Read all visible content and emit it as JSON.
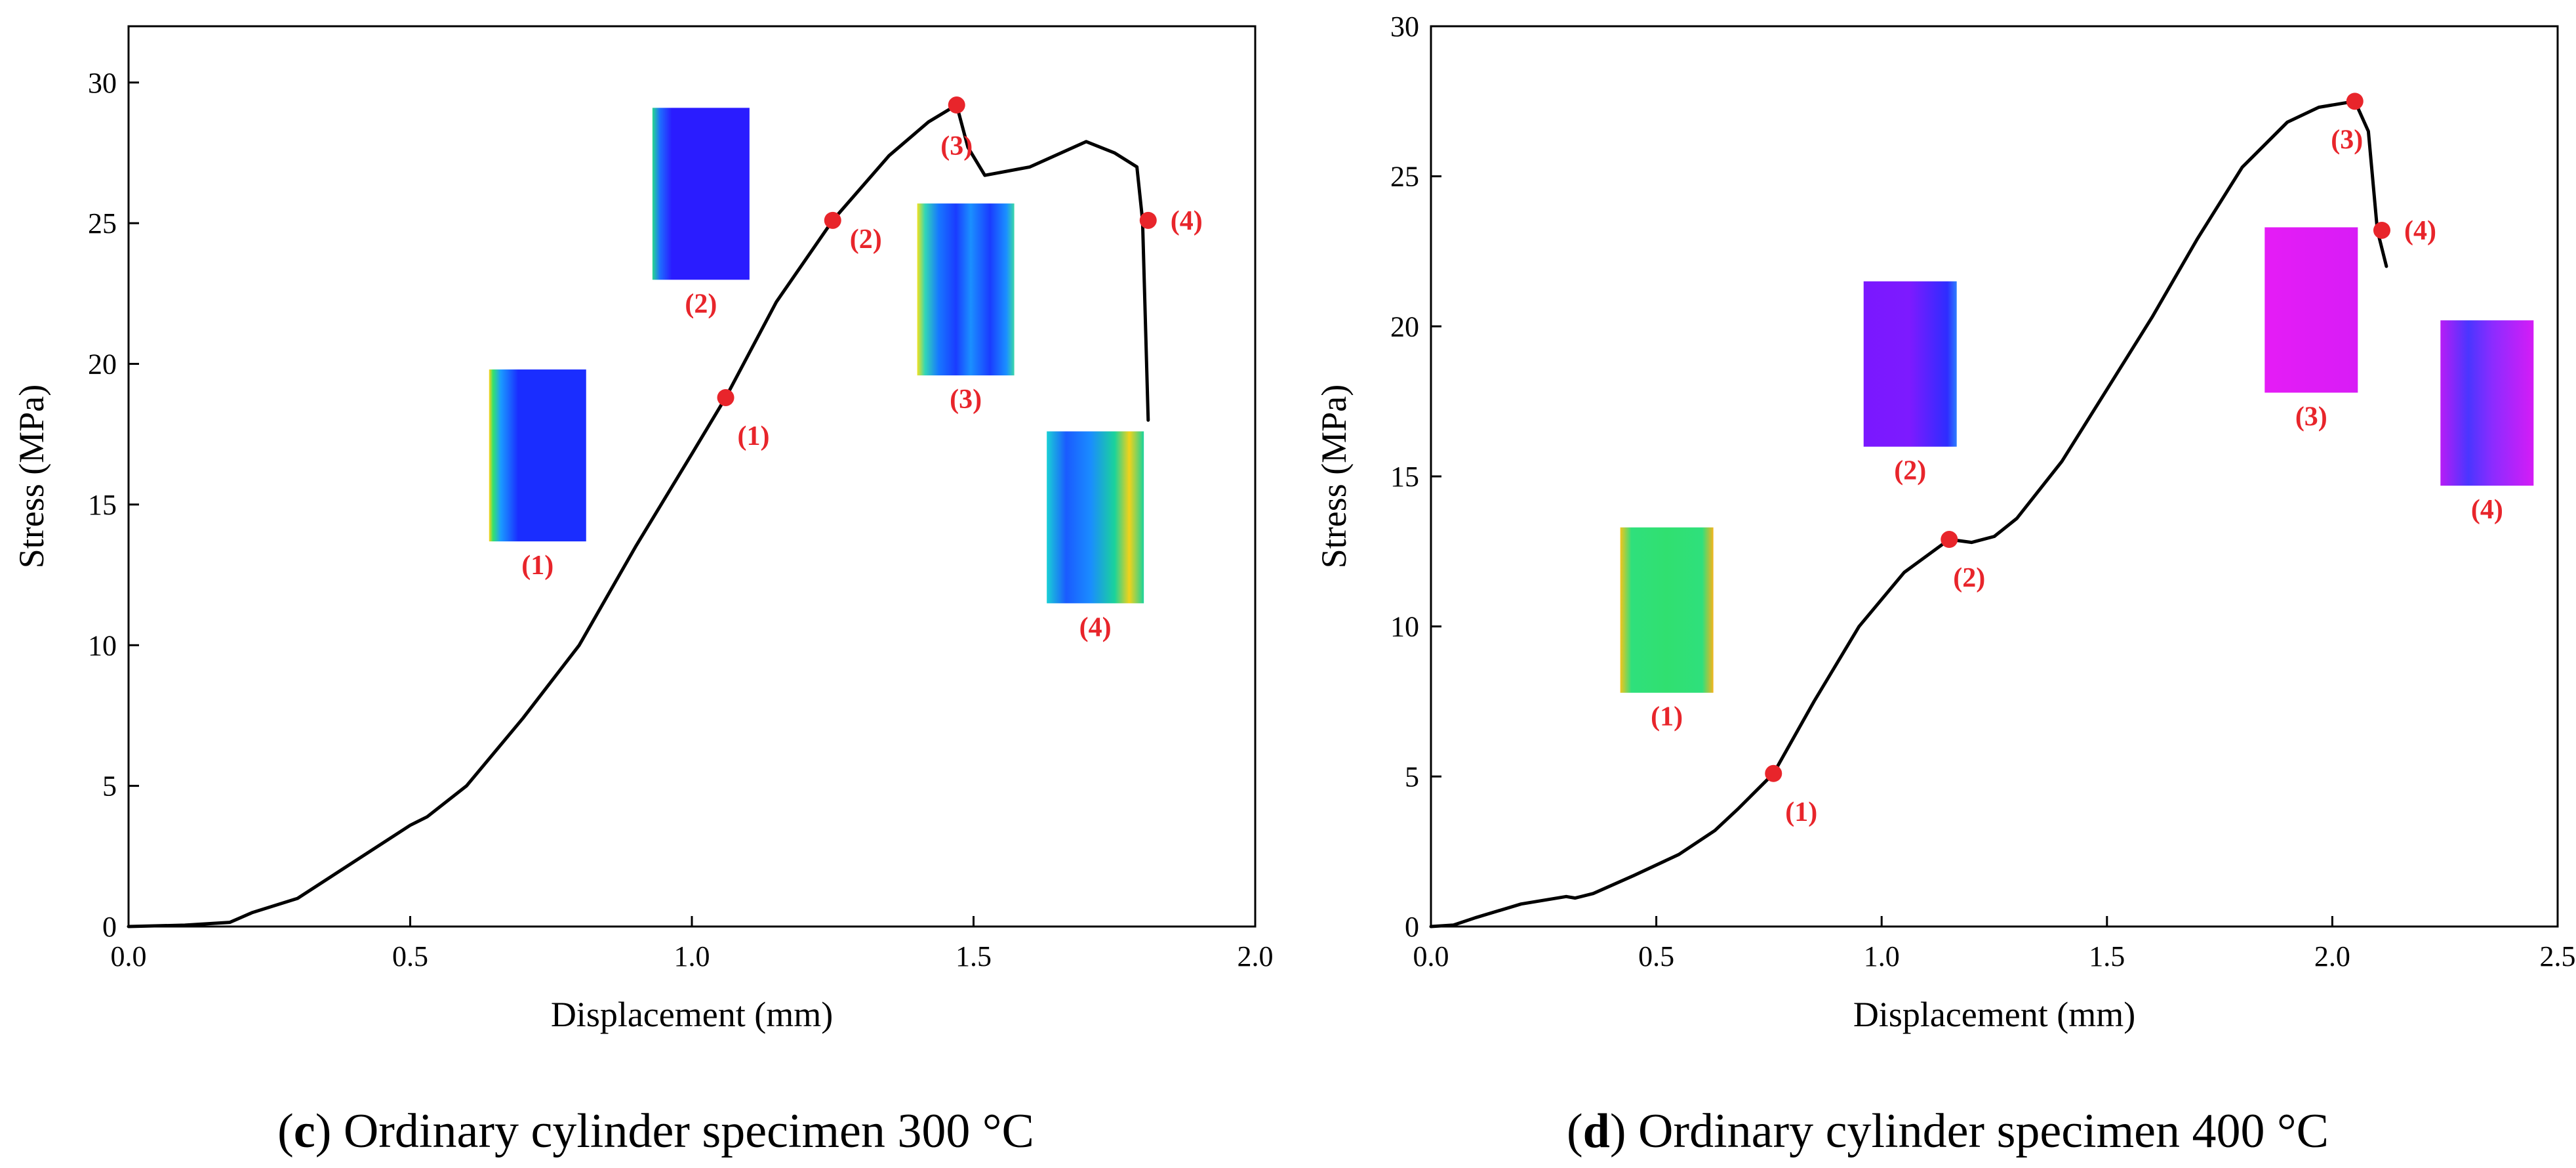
{
  "chart_data": [
    {
      "type": "line",
      "panel_letter": "c",
      "caption_rest": "Ordinary cylinder specimen 300 °C",
      "xlabel": "Displacement (mm)",
      "ylabel": "Stress (MPa)",
      "xlim": [
        0,
        2.0
      ],
      "ylim": [
        0,
        32
      ],
      "xticks": [
        "0.0",
        "0.5",
        "1.0",
        "1.5",
        "2.0"
      ],
      "yticks": [
        "0",
        "5",
        "10",
        "15",
        "20",
        "25",
        "30"
      ],
      "curve_color": "#000000",
      "marker_color": "#e8252b",
      "series": [
        {
          "name": "stress-displacement",
          "x": [
            0.0,
            0.1,
            0.18,
            0.22,
            0.3,
            0.4,
            0.5,
            0.53,
            0.6,
            0.7,
            0.8,
            0.9,
            1.0,
            1.06,
            1.15,
            1.25,
            1.35,
            1.42,
            1.47,
            1.49,
            1.52,
            1.6,
            1.7,
            1.75,
            1.79,
            1.8,
            1.81
          ],
          "y": [
            0.0,
            0.05,
            0.15,
            0.5,
            1.0,
            2.3,
            3.6,
            3.9,
            5.0,
            7.4,
            10.0,
            13.5,
            16.8,
            18.8,
            22.2,
            25.1,
            27.4,
            28.6,
            29.2,
            27.7,
            26.7,
            27.0,
            27.9,
            27.5,
            27.0,
            25.1,
            18.0
          ]
        }
      ],
      "key_points": [
        {
          "label": "(1)",
          "x": 1.06,
          "y": 18.8
        },
        {
          "label": "(2)",
          "x": 1.25,
          "y": 25.1
        },
        {
          "label": "(3)",
          "x": 1.47,
          "y": 29.2
        },
        {
          "label": "(4)",
          "x": 1.81,
          "y": 25.1
        }
      ],
      "insets": [
        {
          "label": "(1)",
          "x": 0.64,
          "y": 19.8,
          "scheme": "blue-edge"
        },
        {
          "label": "(2)",
          "x": 0.93,
          "y": 29.1,
          "scheme": "deep-blue"
        },
        {
          "label": "(3)",
          "x": 1.4,
          "y": 25.7,
          "scheme": "blue-columns"
        },
        {
          "label": "(4)",
          "x": 1.63,
          "y": 17.6,
          "scheme": "blue-yellow"
        }
      ]
    },
    {
      "type": "line",
      "panel_letter": "d",
      "caption_rest": "Ordinary cylinder specimen 400 °C",
      "xlabel": "Displacement (mm)",
      "ylabel": "Stress (MPa)",
      "xlim": [
        0,
        2.5
      ],
      "ylim": [
        0,
        30
      ],
      "xticks": [
        "0.0",
        "0.5",
        "1.0",
        "1.5",
        "2.0",
        "2.5"
      ],
      "yticks": [
        "0",
        "5",
        "10",
        "15",
        "20",
        "25",
        "30"
      ],
      "curve_color": "#000000",
      "marker_color": "#e8252b",
      "series": [
        {
          "name": "stress-displacement",
          "x": [
            0.0,
            0.05,
            0.1,
            0.2,
            0.3,
            0.32,
            0.36,
            0.45,
            0.55,
            0.63,
            0.68,
            0.72,
            0.76,
            0.85,
            0.95,
            1.05,
            1.15,
            1.2,
            1.25,
            1.3,
            1.4,
            1.5,
            1.6,
            1.7,
            1.8,
            1.9,
            1.97,
            2.05,
            2.08,
            2.1,
            2.12
          ],
          "y": [
            0.0,
            0.05,
            0.3,
            0.75,
            1.0,
            0.95,
            1.1,
            1.7,
            2.4,
            3.2,
            3.9,
            4.5,
            5.1,
            7.5,
            10.0,
            11.8,
            12.9,
            12.8,
            13.0,
            13.6,
            15.5,
            17.9,
            20.3,
            22.9,
            25.3,
            26.8,
            27.3,
            27.5,
            26.5,
            23.2,
            22.0
          ]
        }
      ],
      "key_points": [
        {
          "label": "(1)",
          "x": 0.76,
          "y": 5.1
        },
        {
          "label": "(2)",
          "x": 1.15,
          "y": 12.9
        },
        {
          "label": "(3)",
          "x": 2.05,
          "y": 27.5
        },
        {
          "label": "(4)",
          "x": 2.11,
          "y": 23.2
        }
      ],
      "insets": [
        {
          "label": "(1)",
          "x": 0.42,
          "y": 13.3,
          "scheme": "green"
        },
        {
          "label": "(2)",
          "x": 0.96,
          "y": 21.5,
          "scheme": "purple"
        },
        {
          "label": "(3)",
          "x": 1.85,
          "y": 23.3,
          "scheme": "magenta"
        },
        {
          "label": "(4)",
          "x": 2.24,
          "y": 20.2,
          "scheme": "magenta-blue"
        }
      ]
    }
  ]
}
